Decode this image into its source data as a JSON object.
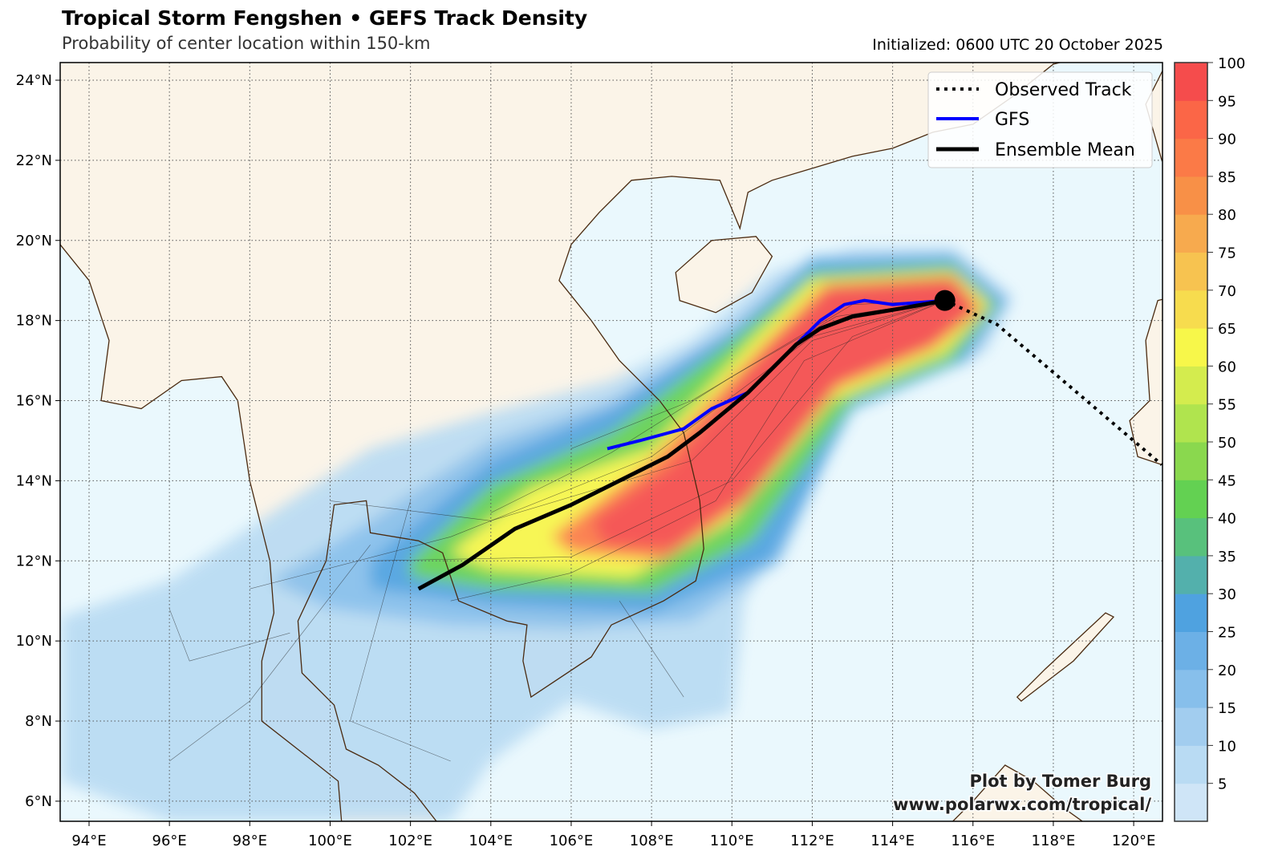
{
  "title": "Tropical Storm Fengshen • GEFS Track Density",
  "subtitle": "Probability of center location within 150-km",
  "initialized": "Initialized: 0600 UTC 20 October 2025",
  "attribution": {
    "line1": "Plot by Tomer Burg",
    "line2": "www.polarwx.com/tropical/"
  },
  "legend": [
    {
      "label": "Observed Track",
      "style": "dotted",
      "color": "#000000"
    },
    {
      "label": "GFS",
      "style": "solid",
      "color": "#0000ff"
    },
    {
      "label": "Ensemble Mean",
      "style": "solid",
      "color": "#000000"
    }
  ],
  "map": {
    "lon_range": [
      93.3,
      120.7
    ],
    "lat_range": [
      5.5,
      24.4
    ],
    "lon_ticks": [
      "94°E",
      "96°E",
      "98°E",
      "100°E",
      "102°E",
      "104°E",
      "106°E",
      "108°E",
      "110°E",
      "112°E",
      "114°E",
      "116°E",
      "118°E",
      "120°E"
    ],
    "lat_ticks": [
      "6°N",
      "8°N",
      "10°N",
      "12°N",
      "14°N",
      "16°N",
      "18°N",
      "20°N",
      "22°N",
      "24°N"
    ],
    "land_color": "#fbf4e8",
    "ocean_color": "#eaf8fd",
    "coast_color": "#4a2a10",
    "grid": true
  },
  "colorbar": {
    "ticks": [
      "5",
      "10",
      "15",
      "20",
      "25",
      "30",
      "35",
      "40",
      "45",
      "50",
      "55",
      "60",
      "65",
      "70",
      "75",
      "80",
      "85",
      "90",
      "95",
      "100"
    ],
    "colors": [
      "#cfe5f7",
      "#b9dbf3",
      "#a2cdef",
      "#87bfeb",
      "#6cb0e6",
      "#4fa2e0",
      "#53b0ac",
      "#58c17c",
      "#63d152",
      "#8ad84e",
      "#b0e44e",
      "#d4ec4e",
      "#f7f74a",
      "#f7dc4e",
      "#f7c350",
      "#f7aa4e",
      "#f89047",
      "#fb7a47",
      "#fb6647",
      "#f54c4c"
    ]
  },
  "tracks": {
    "ensemble_mean": [
      [
        102.2,
        11.3
      ],
      [
        103.3,
        11.9
      ],
      [
        104.6,
        12.8
      ],
      [
        106.0,
        13.4
      ],
      [
        107.0,
        13.9
      ],
      [
        108.4,
        14.6
      ],
      [
        109.2,
        15.2
      ],
      [
        110.4,
        16.2
      ],
      [
        111.6,
        17.4
      ],
      [
        112.2,
        17.8
      ],
      [
        113.0,
        18.1
      ],
      [
        114.2,
        18.3
      ],
      [
        115.3,
        18.5
      ]
    ],
    "gfs": [
      [
        106.9,
        14.8
      ],
      [
        107.7,
        15.0
      ],
      [
        108.8,
        15.3
      ],
      [
        109.5,
        15.8
      ],
      [
        110.4,
        16.2
      ],
      [
        111.6,
        17.4
      ],
      [
        112.2,
        18.0
      ],
      [
        112.8,
        18.4
      ],
      [
        113.3,
        18.5
      ],
      [
        114.0,
        18.4
      ],
      [
        115.3,
        18.5
      ]
    ],
    "observed": [
      [
        115.3,
        18.5
      ],
      [
        116.6,
        17.9
      ],
      [
        120.7,
        14.4
      ]
    ],
    "current_position": [
      115.3,
      18.5
    ]
  }
}
